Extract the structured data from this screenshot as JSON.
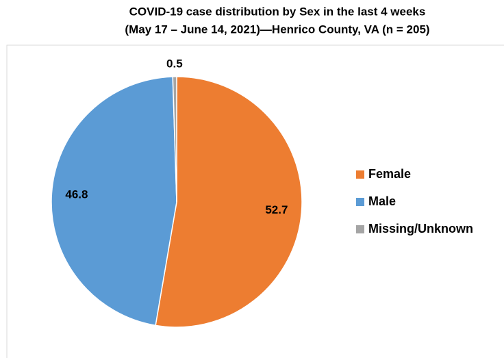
{
  "chart_data": {
    "type": "pie",
    "title": "COVID-19 case distribution by Sex in the last 4 weeks",
    "subtitle": "(May 17 – June 14, 2021)—Henrico County, VA (n = 205)",
    "categories": [
      "Female",
      "Male",
      "Missing/Unknown"
    ],
    "values": [
      52.7,
      46.8,
      0.5
    ],
    "colors": [
      "#ed7d31",
      "#5b9bd5",
      "#a5a5a5"
    ],
    "legend": "right"
  }
}
